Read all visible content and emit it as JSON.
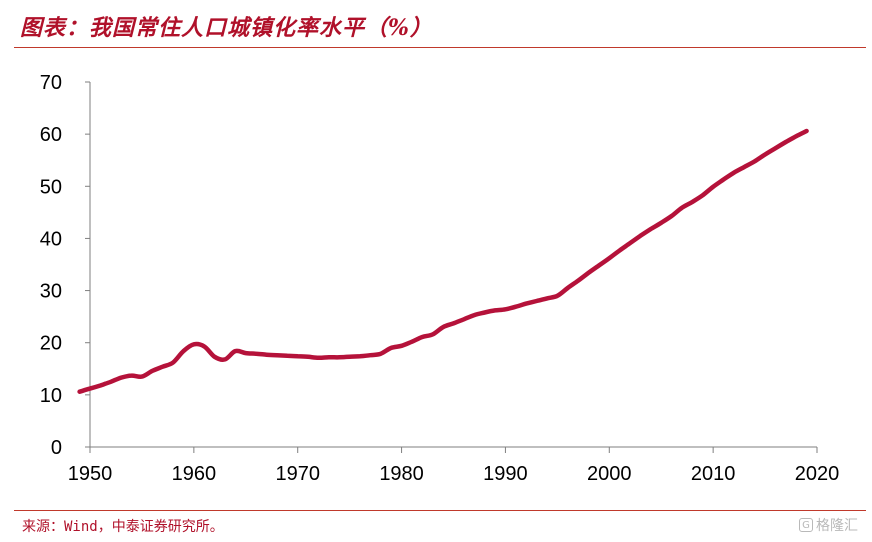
{
  "header": {
    "title": "图表：我国常住人口城镇化率水平（%）"
  },
  "footer": {
    "source": "来源：Wind，中泰证券研究所。",
    "watermark_text": "格隆汇",
    "watermark_icon": "g-logo-icon"
  },
  "colors": {
    "accent": "#b0112a",
    "line": "#b5123a",
    "axis": "#7f7f7f"
  },
  "chart_data": {
    "type": "line",
    "title": "",
    "xlabel": "",
    "ylabel": "",
    "xlim": [
      1950,
      2020
    ],
    "ylim": [
      0,
      70
    ],
    "xticks": [
      1950,
      1960,
      1970,
      1980,
      1990,
      2000,
      2010,
      2020
    ],
    "yticks": [
      0,
      10,
      20,
      30,
      40,
      50,
      60,
      70
    ],
    "grid": false,
    "legend": "none",
    "series": [
      {
        "x": [
          1949,
          1950,
          1951,
          1952,
          1953,
          1954,
          1955,
          1956,
          1957,
          1958,
          1959,
          1960,
          1961,
          1962,
          1963,
          1964,
          1965,
          1966,
          1967,
          1968,
          1969,
          1970,
          1971,
          1972,
          1973,
          1974,
          1975,
          1976,
          1977,
          1978,
          1979,
          1980,
          1981,
          1982,
          1983,
          1984,
          1985,
          1986,
          1987,
          1988,
          1989,
          1990,
          1991,
          1992,
          1993,
          1994,
          1995,
          1996,
          1997,
          1998,
          1999,
          2000,
          2001,
          2002,
          2003,
          2004,
          2005,
          2006,
          2007,
          2008,
          2009,
          2010,
          2011,
          2012,
          2013,
          2014,
          2015,
          2016,
          2017,
          2018,
          2019
        ],
        "values": [
          10.6,
          11.2,
          11.8,
          12.5,
          13.3,
          13.7,
          13.5,
          14.6,
          15.4,
          16.2,
          18.4,
          19.7,
          19.3,
          17.3,
          16.8,
          18.4,
          18.0,
          17.9,
          17.7,
          17.6,
          17.5,
          17.4,
          17.3,
          17.1,
          17.2,
          17.2,
          17.3,
          17.4,
          17.6,
          17.9,
          19.0,
          19.4,
          20.2,
          21.1,
          21.6,
          23.0,
          23.7,
          24.5,
          25.3,
          25.8,
          26.2,
          26.4,
          26.9,
          27.5,
          28.0,
          28.5,
          29.0,
          30.5,
          31.9,
          33.4,
          34.8,
          36.2,
          37.7,
          39.1,
          40.5,
          41.8,
          43.0,
          44.3,
          45.9,
          47.0,
          48.3,
          49.9,
          51.3,
          52.6,
          53.7,
          54.8,
          56.1,
          57.3,
          58.5,
          59.6,
          60.6
        ]
      }
    ]
  }
}
